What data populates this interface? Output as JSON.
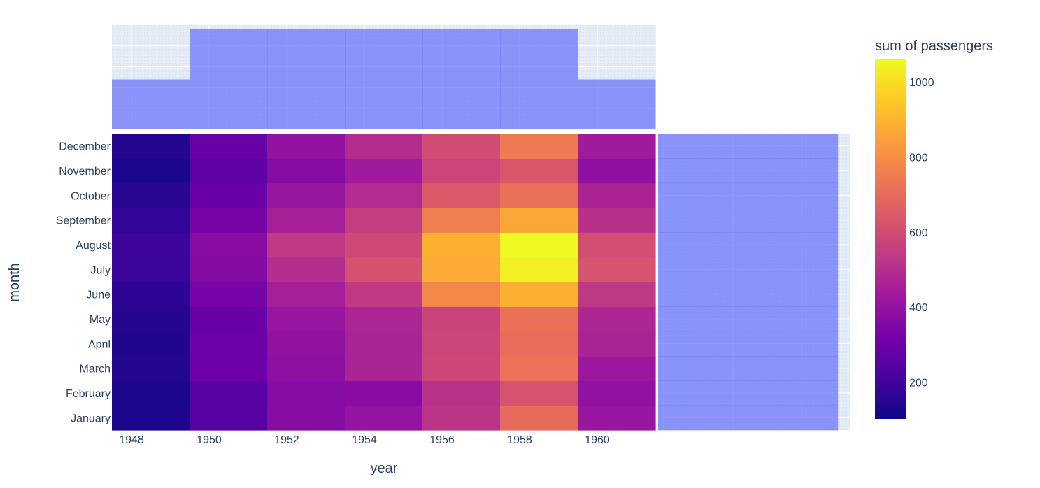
{
  "chart_data": {
    "type": "heatmap",
    "xlabel": "year",
    "ylabel": "month",
    "colorbar_title": "sum of passengers",
    "colorscale": [
      "#0d0887",
      "#46039f",
      "#7201a8",
      "#9c179e",
      "#bd3786",
      "#d8576b",
      "#ed7953",
      "#fb9f3a",
      "#fdca26",
      "#f0f921"
    ],
    "zrange": [
      100,
      1060
    ],
    "colorbar_ticks": [
      "200",
      "400",
      "600",
      "800",
      "1000"
    ],
    "colorbar_tick_values": [
      200,
      400,
      600,
      800,
      1000
    ],
    "x_bins": [
      1948,
      1950,
      1952,
      1954,
      1956,
      1958,
      1960
    ],
    "x_ticks": [
      "1948",
      "1950",
      "1952",
      "1954",
      "1956",
      "1958",
      "1960"
    ],
    "months": [
      "January",
      "February",
      "March",
      "April",
      "May",
      "June",
      "July",
      "August",
      "September",
      "October",
      "November",
      "December"
    ],
    "z": [
      [
        133,
        245,
        367,
        400,
        518,
        700,
        417
      ],
      [
        126,
        253,
        360,
        368,
        510,
        620,
        391
      ],
      [
        141,
        297,
        385,
        464,
        584,
        718,
        419
      ],
      [
        135,
        298,
        395,
        462,
        575,
        703,
        461
      ],
      [
        146,
        294,
        409,
        470,
        572,
        716,
        472
      ],
      [
        159,
        327,
        445,
        537,
        782,
        888,
        535
      ],
      [
        186,
        359,
        495,
        615,
        877,
        1040,
        622
      ],
      [
        190,
        369,
        534,
        590,
        888,
        1060,
        606
      ],
      [
        172,
        330,
        450,
        554,
        756,
        867,
        508
      ],
      [
        151,
        295,
        410,
        489,
        640,
        716,
        461
      ],
      [
        126,
        266,
        363,
        433,
        573,
        632,
        390
      ],
      [
        144,
        286,
        398,
        493,
        603,
        742,
        432
      ]
    ],
    "top_marginal": {
      "type": "histogram",
      "bar_color": "#636efa",
      "opacity": 0.7,
      "counts": [
        12,
        24,
        24,
        24,
        24,
        24,
        12
      ]
    },
    "right_marginal": {
      "type": "histogram",
      "bar_color": "#636efa",
      "opacity": 0.7,
      "counts": [
        13,
        13,
        13,
        13,
        13,
        13,
        13,
        13,
        13,
        13,
        13,
        13
      ]
    },
    "grid": true,
    "legend": "none",
    "plot_bg": "#e5ecf6"
  }
}
